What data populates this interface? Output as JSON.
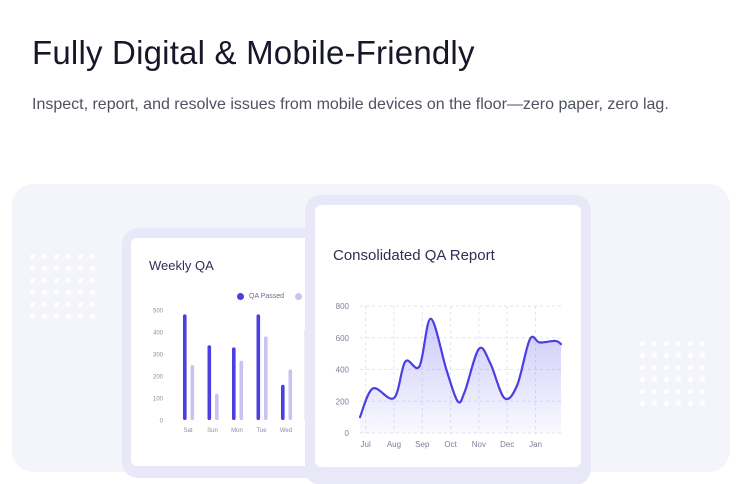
{
  "section": {
    "heading": "Fully Digital & Mobile-Friendly",
    "description": "Inspect, report, and resolve issues from mobile devices on the floor—zero paper, zero lag."
  },
  "weekly_card": {
    "title": "Weekly QA",
    "legend_passed": "QA Passed"
  },
  "report_card": {
    "title": "Consolidated QA Report"
  },
  "colors": {
    "primary": "#4a3fe0",
    "secondary": "#c7c3f3",
    "panel_bg": "#f4f5fb"
  },
  "chart_data": [
    {
      "type": "bar",
      "title": "Weekly QA",
      "categories": [
        "Sat",
        "Sun",
        "Mon",
        "Tue",
        "Wed"
      ],
      "series": [
        {
          "name": "QA Passed",
          "values": [
            480,
            340,
            330,
            480,
            160
          ]
        },
        {
          "values": [
            250,
            120,
            270,
            380,
            230
          ]
        }
      ],
      "yticks": [
        0,
        100,
        200,
        300,
        400,
        500
      ],
      "ylim": [
        0,
        500
      ],
      "legend": "top-right"
    },
    {
      "type": "area",
      "title": "Consolidated QA Report",
      "categories": [
        "Jul",
        "Aug",
        "Sep",
        "Oct",
        "Nov",
        "Dec",
        "Jan"
      ],
      "x": [
        0,
        0.45,
        1.2,
        1.6,
        2.1,
        2.5,
        3.05,
        3.45,
        3.7,
        4.2,
        4.6,
        5.1,
        5.55,
        6.0,
        6.35,
        6.9,
        7.1
      ],
      "y": [
        100,
        280,
        220,
        450,
        420,
        720,
        400,
        200,
        260,
        530,
        440,
        220,
        300,
        590,
        570,
        580,
        560
      ],
      "yticks": [
        0,
        200,
        400,
        600,
        800
      ],
      "ylim": [
        0,
        800
      ],
      "grid": true
    }
  ]
}
